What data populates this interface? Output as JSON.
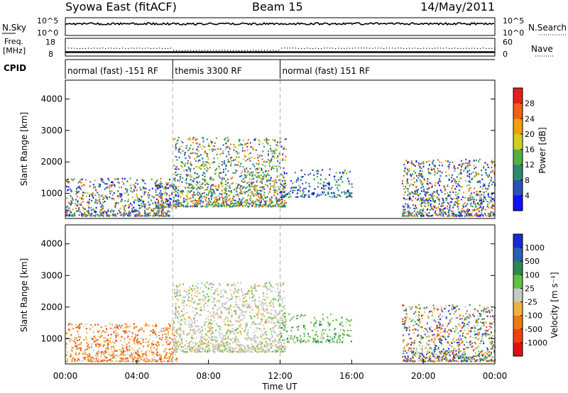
{
  "header": {
    "station": "Syowa East (fitACF)",
    "beam": "Beam 15",
    "date": "14/May/2011"
  },
  "summary_panels": {
    "nsky_label": "N.Sky",
    "nsearch_label": "N.Search",
    "nsky_ticks": [
      "10^5",
      "10^0"
    ],
    "nsearch_ticks": [
      "10^5",
      "10^0"
    ],
    "freq_label_1": "Freq.",
    "freq_label_2": "[MHz]",
    "freq_ticks": [
      "18",
      "8"
    ],
    "nave_label": "Nave",
    "nave_ticks": [
      "60",
      "0"
    ],
    "cpid_label": "CPID",
    "cpid_segments": [
      {
        "label": "normal (fast) -151 RF",
        "start": 0,
        "end": 6
      },
      {
        "label": "themis 3300 RF",
        "start": 6,
        "end": 12
      },
      {
        "label": "normal (fast) 151 RF",
        "start": 12,
        "end": 24
      }
    ]
  },
  "chart_data": [
    {
      "type": "heatmap",
      "name": "power",
      "ylabel": "Slant Range [km]",
      "xlim": [
        0,
        24
      ],
      "ylim": [
        200,
        4600
      ],
      "yticks": [
        "1000",
        "2000",
        "3000",
        "4000"
      ],
      "colorbar": {
        "label": "Power [dB]",
        "tick_labels": [
          "4",
          "8",
          "12",
          "16",
          "20",
          "24",
          "28"
        ],
        "colors": [
          "#1010ff",
          "#2a52b8",
          "#2c8a6a",
          "#54b040",
          "#d0d020",
          "#f0a010",
          "#f06010",
          "#e02020"
        ]
      },
      "echo_regions": [
        {
          "t0": 0.0,
          "t1": 5.8,
          "r0": 300,
          "r1": 1500,
          "mode": "mixed"
        },
        {
          "t0": 5.0,
          "t1": 6.2,
          "r0": 550,
          "r1": 1350,
          "mode": "mixed"
        },
        {
          "t0": 6.0,
          "t1": 12.3,
          "r0": 600,
          "r1": 2800,
          "mode": "strong"
        },
        {
          "t0": 12.0,
          "t1": 16.0,
          "r0": 900,
          "r1": 1800,
          "mode": "weak"
        },
        {
          "t0": 18.8,
          "t1": 24.0,
          "r0": 300,
          "r1": 2100,
          "mode": "mixed"
        }
      ]
    },
    {
      "type": "heatmap",
      "name": "velocity",
      "ylabel": "Slant Range [km]",
      "xlabel": "Time UT",
      "xlim": [
        0,
        24
      ],
      "ylim": [
        200,
        4600
      ],
      "yticks": [
        "1000",
        "2000",
        "3000",
        "4000"
      ],
      "xticks": [
        "00:00",
        "04:00",
        "08:00",
        "12:00",
        "16:00",
        "20:00",
        "00:00"
      ],
      "colorbar": {
        "label": "Velocity [m s⁻¹]",
        "tick_labels": [
          "-1000",
          "-500",
          "-100",
          "-25",
          "25",
          "100",
          "500",
          "1000"
        ],
        "colors": [
          "#e01010",
          "#f04010",
          "#f07a10",
          "#f0b040",
          "#c8c8c8",
          "#60c040",
          "#2a8a50",
          "#2a60b0",
          "#1a2ad0"
        ]
      },
      "echo_regions": [
        {
          "t0": 0.0,
          "t1": 6.2,
          "r0": 300,
          "r1": 1500,
          "mode": "negative"
        },
        {
          "t0": 6.0,
          "t1": 12.3,
          "r0": 600,
          "r1": 2800,
          "mode": "near-zero"
        },
        {
          "t0": 12.0,
          "t1": 16.0,
          "r0": 900,
          "r1": 1800,
          "mode": "positive"
        },
        {
          "t0": 18.8,
          "t1": 24.0,
          "r0": 300,
          "r1": 2100,
          "mode": "mixed"
        }
      ]
    }
  ]
}
